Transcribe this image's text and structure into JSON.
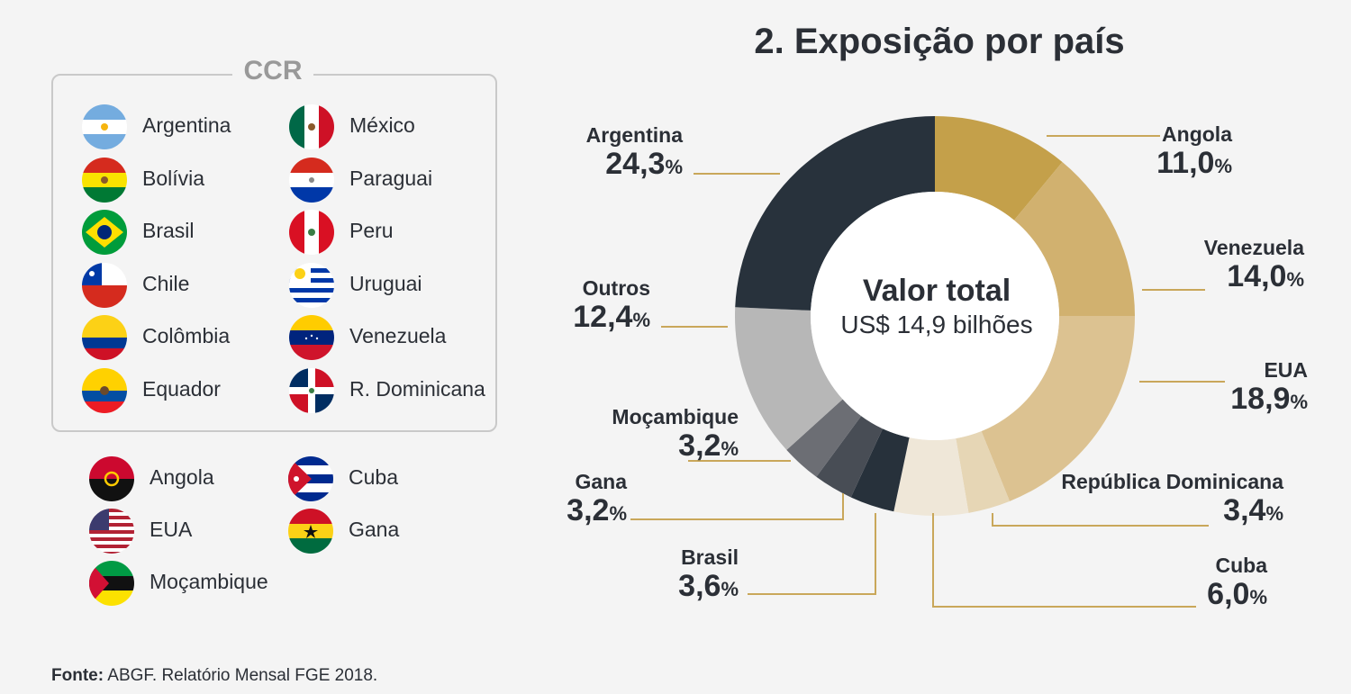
{
  "ccr": {
    "title": "CCR",
    "col1": [
      {
        "name": "Argentina",
        "flag": "argentina-flag-icon"
      },
      {
        "name": "Bolívia",
        "flag": "bolivia-flag-icon"
      },
      {
        "name": "Brasil",
        "flag": "brasil-flag-icon"
      },
      {
        "name": "Chile",
        "flag": "chile-flag-icon"
      },
      {
        "name": "Colômbia",
        "flag": "colombia-flag-icon"
      },
      {
        "name": "Equador",
        "flag": "equador-flag-icon"
      }
    ],
    "col2": [
      {
        "name": "México",
        "flag": "mexico-flag-icon"
      },
      {
        "name": "Paraguai",
        "flag": "paraguai-flag-icon"
      },
      {
        "name": "Peru",
        "flag": "peru-flag-icon"
      },
      {
        "name": "Uruguai",
        "flag": "uruguai-flag-icon"
      },
      {
        "name": "Venezuela",
        "flag": "venezuela-flag-icon"
      },
      {
        "name": "R. Dominicana",
        "flag": "r-dominicana-flag-icon"
      }
    ]
  },
  "others": {
    "col1": [
      {
        "name": "Angola",
        "flag": "angola-flag-icon"
      },
      {
        "name": "EUA",
        "flag": "eua-flag-icon"
      },
      {
        "name": "Moçambique",
        "flag": "mocambique-flag-icon"
      }
    ],
    "col2": [
      {
        "name": "Cuba",
        "flag": "cuba-flag-icon"
      },
      {
        "name": "Gana",
        "flag": "gana-flag-icon"
      }
    ]
  },
  "chart_data": {
    "type": "pie",
    "variant": "donut",
    "title": "2. Exposição por país",
    "center_title": "Valor total",
    "center_value": "US$ 14,9 bilhões",
    "percent_sign": "%",
    "slices": [
      {
        "label": "Angola",
        "value": 11.0,
        "display": "11,0",
        "color": "#c4a04a"
      },
      {
        "label": "Venezuela",
        "value": 14.0,
        "display": "14,0",
        "color": "#d1b16f"
      },
      {
        "label": "EUA",
        "value": 18.9,
        "display": "18,9",
        "color": "#dcc291"
      },
      {
        "label": "República Dominicana",
        "value": 3.4,
        "display": "3,4",
        "color": "#e6d6b5"
      },
      {
        "label": "Cuba",
        "value": 6.0,
        "display": "6,0",
        "color": "#efe7d8"
      },
      {
        "label": "Brasil",
        "value": 3.6,
        "display": "3,6",
        "color": "#27313b"
      },
      {
        "label": "Gana",
        "value": 3.2,
        "display": "3,2",
        "color": "#484d55"
      },
      {
        "label": "Moçambique",
        "value": 3.2,
        "display": "3,2",
        "color": "#6c6e74"
      },
      {
        "label": "Outros",
        "value": 12.4,
        "display": "12,4",
        "color": "#b7b7b7"
      },
      {
        "label": "Argentina",
        "value": 24.3,
        "display": "24,3",
        "color": "#28323c"
      }
    ],
    "leader_color": "#c9a75a"
  },
  "source": {
    "label": "Fonte:",
    "text": "ABGF. Relatório Mensal FGE 2018."
  }
}
